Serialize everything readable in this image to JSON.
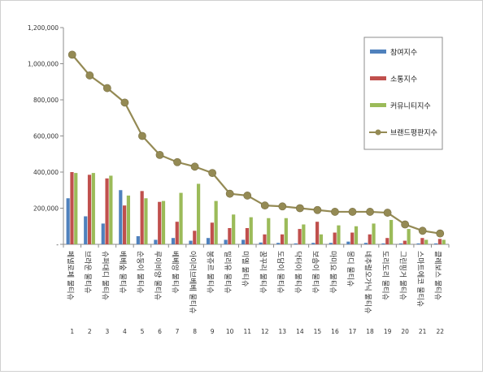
{
  "chart_data": {
    "type": "bar",
    "ylim": [
      0,
      1200000
    ],
    "yticks": [
      0,
      200000,
      400000,
      600000,
      800000,
      1000000,
      1200000
    ],
    "ytick_labels": [
      "-",
      "200,000",
      "400,000",
      "600,000",
      "800,000",
      "1,000,000",
      "1,200,000"
    ],
    "grid": false,
    "legend_position": "right",
    "categories": [
      "페넬로페 물티슈",
      "브라운 물티슈",
      "슈퍼대디 물티슈",
      "베베숲 물티슈",
      "순둥이 물티슈",
      "루이비양 물티슈",
      "베베앙 물티슈",
      "아이러브베베 물티슈",
      "봉쥬르 물티슈",
      "밀리유 물티슈",
      "미엘 물티슈",
      "꿈꾸리 물티슈",
      "도담이 물티슈",
      "닥터이 물티슈",
      "보솜이 물티슈",
      "마미요 물티슈",
      "몽디 물티슈",
      "네추럴오가닉 물티슈",
      "도리도리 물티슈",
      "그린핑거 물티슈",
      "스마트에코 물티슈",
      "클레보스 물티슈"
    ],
    "numbers": [
      "1",
      "2",
      "3",
      "4",
      "5",
      "6",
      "7",
      "8",
      "9",
      "10",
      "11",
      "12",
      "13",
      "14",
      "15",
      "16",
      "17",
      "18",
      "19",
      "20",
      "21",
      "22"
    ],
    "series": [
      {
        "name": "참여지수",
        "color": "#4f81bd",
        "kind": "bar",
        "values": [
          255000,
          155000,
          115000,
          300000,
          45000,
          25000,
          35000,
          20000,
          35000,
          25000,
          25000,
          10000,
          8000,
          5000,
          8000,
          8000,
          15000,
          8000,
          5000,
          5000,
          5000,
          5000
        ]
      },
      {
        "name": "소통지수",
        "color": "#c0504d",
        "kind": "bar",
        "values": [
          400000,
          385000,
          365000,
          215000,
          295000,
          235000,
          125000,
          75000,
          120000,
          90000,
          90000,
          55000,
          55000,
          85000,
          125000,
          65000,
          65000,
          55000,
          35000,
          20000,
          35000,
          30000
        ]
      },
      {
        "name": "커뮤니티지수",
        "color": "#9bbb59",
        "kind": "bar",
        "values": [
          395000,
          395000,
          380000,
          270000,
          255000,
          240000,
          285000,
          335000,
          240000,
          165000,
          150000,
          145000,
          145000,
          110000,
          55000,
          105000,
          100000,
          115000,
          135000,
          85000,
          25000,
          25000
        ]
      },
      {
        "name": "브랜드평판지수",
        "color": "#948a54",
        "kind": "line",
        "values": [
          1050000,
          935000,
          865000,
          785000,
          600000,
          495000,
          455000,
          430000,
          395000,
          280000,
          270000,
          215000,
          210000,
          200000,
          190000,
          180000,
          180000,
          180000,
          175000,
          110000,
          75000,
          60000
        ]
      }
    ]
  }
}
